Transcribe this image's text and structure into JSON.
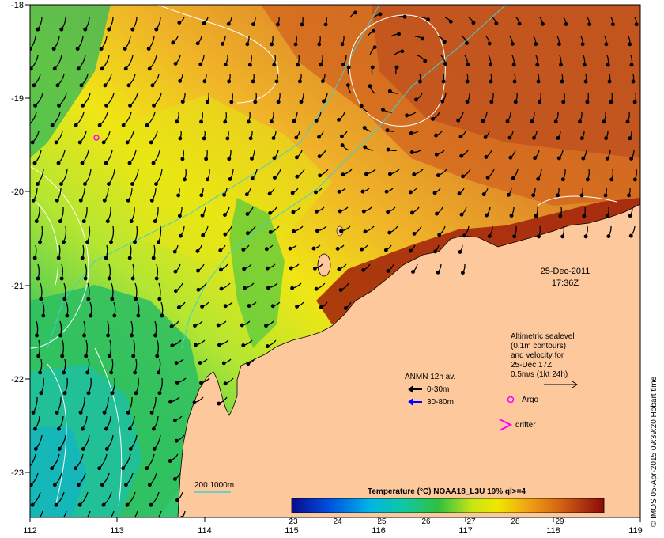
{
  "map": {
    "lon_ticks": [
      "112",
      "113",
      "114",
      "115",
      "116",
      "117",
      "118",
      "119"
    ],
    "lat_ticks": [
      "-18",
      "-19",
      "-20",
      "-21",
      "-22",
      "-23"
    ],
    "lon_range": [
      112,
      119
    ],
    "lat_range": [
      -23.5,
      -18
    ]
  },
  "datetime": {
    "date": "25-Dec-2011",
    "time": "17:36Z"
  },
  "altimetry_note": {
    "line1": "Altimetric sealevel",
    "line2": "(0.1m contours)",
    "line3": "and velocity for",
    "line4": "25-Dec 17Z",
    "line5": "0.5m/s (1kt 24h)"
  },
  "anmn_legend": {
    "title": "ANMN 12h av.",
    "item1": "0-30m",
    "item2": "30-80m",
    "color1": "#000000",
    "color2": "#0000ff"
  },
  "markers": {
    "argo_label": "Argo",
    "drifter_label": "drifter",
    "color": "#ff00ff"
  },
  "isobath": {
    "label": "200  1000m",
    "color": "#40d0d0"
  },
  "colorbar": {
    "title": "Temperature (°C) NOAA18_L3U 19% ql>=4",
    "ticks": [
      "23",
      "24",
      "25",
      "26",
      "27",
      "28",
      "29"
    ],
    "range": [
      23,
      30
    ]
  },
  "credit": "© IMOS 05-Apr-2015 09:39:20 Hobart time",
  "colors": {
    "land": "#fcc89c",
    "warm": "#c83c0a",
    "cool": "#2ec080"
  }
}
